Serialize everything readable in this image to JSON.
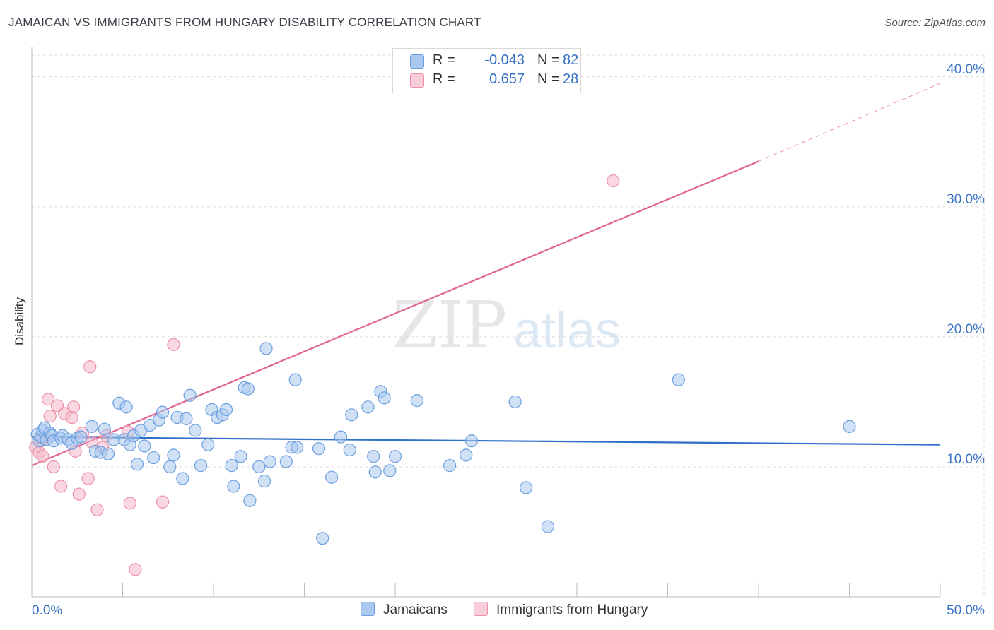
{
  "title": "JAMAICAN VS IMMIGRANTS FROM HUNGARY DISABILITY CORRELATION CHART",
  "source": "Source: ZipAtlas.com",
  "watermark": {
    "zip": "ZIP",
    "atlas": "atlas"
  },
  "legend": {
    "rows": [
      {
        "r_label": "R =",
        "r_value": "-0.043",
        "n_label": "N =",
        "n_value": "82"
      },
      {
        "r_label": "R =",
        "r_value": "0.657",
        "n_label": "N =",
        "n_value": "28"
      }
    ]
  },
  "bottom_legend": {
    "series1": "Jamaicans",
    "series2": "Immigrants from Hungary"
  },
  "colors": {
    "blue_fill": "#a9c8ef",
    "blue_stroke": "#6c9fe0",
    "blue_line": "#2f6fc8",
    "pink_fill": "#f5b8c9",
    "pink_stroke": "#ec8fa8",
    "pink_line": "#e06490",
    "tick_label": "#3b73c4"
  },
  "chart_data": {
    "type": "scatter",
    "title": "JAMAICAN VS IMMIGRANTS FROM HUNGARY DISABILITY CORRELATION CHART",
    "xlabel": "",
    "ylabel": "Disability",
    "xlim": [
      0,
      50
    ],
    "ylim": [
      0,
      42
    ],
    "x_tick_labels": [
      "0.0%",
      "50.0%"
    ],
    "y_ticks": [
      10,
      20,
      30,
      40
    ],
    "y_tick_labels": [
      "10.0%",
      "20.0%",
      "30.0%",
      "40.0%"
    ],
    "grid": true,
    "series": [
      {
        "name": "Jamaicans",
        "r": -0.043,
        "n": 82,
        "trend": {
          "x0": 0,
          "y0": 12.3,
          "x1": 50,
          "y1": 11.7
        },
        "points": [
          [
            0.3,
            12.5
          ],
          [
            0.4,
            12.0
          ],
          [
            0.5,
            12.3
          ],
          [
            0.6,
            12.8
          ],
          [
            0.7,
            13.0
          ],
          [
            0.8,
            12.1
          ],
          [
            1.0,
            12.6
          ],
          [
            1.1,
            12.4
          ],
          [
            1.2,
            12.0
          ],
          [
            1.6,
            12.2
          ],
          [
            1.7,
            12.4
          ],
          [
            2.0,
            12.1
          ],
          [
            2.2,
            11.8
          ],
          [
            2.5,
            12.2
          ],
          [
            2.7,
            12.3
          ],
          [
            3.3,
            13.1
          ],
          [
            3.5,
            11.2
          ],
          [
            3.8,
            11.1
          ],
          [
            4.0,
            12.9
          ],
          [
            4.2,
            11.0
          ],
          [
            4.5,
            12.1
          ],
          [
            4.8,
            14.9
          ],
          [
            5.1,
            12.1
          ],
          [
            5.2,
            14.6
          ],
          [
            5.4,
            11.7
          ],
          [
            5.6,
            12.4
          ],
          [
            5.8,
            10.2
          ],
          [
            6.0,
            12.8
          ],
          [
            6.2,
            11.6
          ],
          [
            6.5,
            13.2
          ],
          [
            6.7,
            10.7
          ],
          [
            7.0,
            13.6
          ],
          [
            7.2,
            14.2
          ],
          [
            7.6,
            10.0
          ],
          [
            7.8,
            10.9
          ],
          [
            8.0,
            13.8
          ],
          [
            8.3,
            9.1
          ],
          [
            8.5,
            13.7
          ],
          [
            8.7,
            15.5
          ],
          [
            9.0,
            12.8
          ],
          [
            9.3,
            10.1
          ],
          [
            9.7,
            11.7
          ],
          [
            9.9,
            14.4
          ],
          [
            10.2,
            13.8
          ],
          [
            10.5,
            14.0
          ],
          [
            10.7,
            14.4
          ],
          [
            11.0,
            10.1
          ],
          [
            11.1,
            8.5
          ],
          [
            11.5,
            10.8
          ],
          [
            11.7,
            16.1
          ],
          [
            11.9,
            16.0
          ],
          [
            12.0,
            7.4
          ],
          [
            12.5,
            10.0
          ],
          [
            12.8,
            8.9
          ],
          [
            12.9,
            19.1
          ],
          [
            13.1,
            10.4
          ],
          [
            14.0,
            10.4
          ],
          [
            14.3,
            11.5
          ],
          [
            14.5,
            16.7
          ],
          [
            14.6,
            11.5
          ],
          [
            15.8,
            11.4
          ],
          [
            16.0,
            4.5
          ],
          [
            16.5,
            9.2
          ],
          [
            17.0,
            12.3
          ],
          [
            17.5,
            11.3
          ],
          [
            17.6,
            14.0
          ],
          [
            18.5,
            14.6
          ],
          [
            18.8,
            10.8
          ],
          [
            18.9,
            9.6
          ],
          [
            19.2,
            15.8
          ],
          [
            19.4,
            15.3
          ],
          [
            19.7,
            9.7
          ],
          [
            20.0,
            10.8
          ],
          [
            21.2,
            15.1
          ],
          [
            23.0,
            10.1
          ],
          [
            23.9,
            10.9
          ],
          [
            24.2,
            12.0
          ],
          [
            26.6,
            15.0
          ],
          [
            27.2,
            8.4
          ],
          [
            28.4,
            5.4
          ],
          [
            35.6,
            16.7
          ],
          [
            45.0,
            13.1
          ]
        ]
      },
      {
        "name": "Immigrants from Hungary",
        "r": 0.657,
        "n": 28,
        "trend": {
          "x0": 0,
          "y0": 10.1,
          "x1": 40,
          "y1": 33.5
        },
        "trend_extension": {
          "x0": 40,
          "y0": 33.5,
          "x1": 50,
          "y1": 39.5
        },
        "points": [
          [
            0.2,
            11.5
          ],
          [
            0.4,
            11.1
          ],
          [
            0.5,
            12.0
          ],
          [
            0.6,
            10.8
          ],
          [
            0.9,
            15.2
          ],
          [
            1.0,
            13.9
          ],
          [
            1.2,
            10.0
          ],
          [
            1.4,
            14.7
          ],
          [
            1.6,
            8.5
          ],
          [
            1.8,
            14.1
          ],
          [
            2.2,
            13.8
          ],
          [
            2.3,
            14.6
          ],
          [
            2.4,
            11.2
          ],
          [
            2.6,
            7.9
          ],
          [
            2.8,
            12.6
          ],
          [
            3.1,
            9.1
          ],
          [
            3.2,
            17.7
          ],
          [
            3.3,
            11.9
          ],
          [
            3.6,
            6.7
          ],
          [
            3.9,
            11.5
          ],
          [
            4.1,
            12.4
          ],
          [
            5.3,
            12.7
          ],
          [
            5.4,
            7.2
          ],
          [
            5.7,
            2.1
          ],
          [
            7.2,
            7.3
          ],
          [
            7.8,
            19.4
          ],
          [
            32.0,
            32.0
          ],
          [
            0.5,
            12.2
          ]
        ]
      }
    ]
  }
}
